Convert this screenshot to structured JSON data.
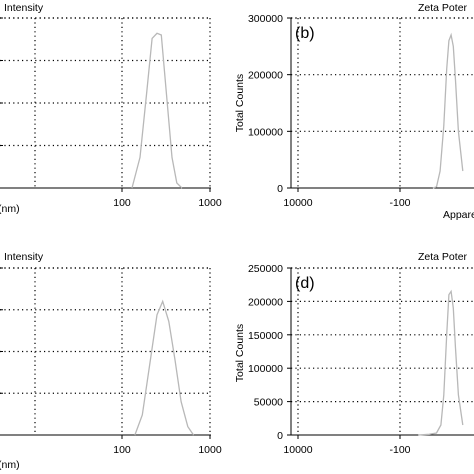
{
  "chart_data": [
    {
      "id": "a",
      "type": "line",
      "title": "Intensity",
      "panel_label": "",
      "xlabel": "(nm)",
      "ylabel": "",
      "x_scale": "log",
      "xlim": [
        10,
        10000
      ],
      "ylim": [
        0,
        100
      ],
      "x_tick_values": [
        100,
        1000,
        10000
      ],
      "x_tick_labels": [
        "100",
        "1000",
        "10000"
      ],
      "y_tick_values": [
        0,
        25,
        50,
        75,
        100
      ],
      "y_tick_labels": [
        "",
        "",
        "",
        "",
        ""
      ],
      "grid": true,
      "color": "#b8b8b8",
      "x": [
        130,
        160,
        190,
        220,
        250,
        280,
        320,
        370,
        420,
        480
      ],
      "y": [
        0,
        18,
        55,
        88,
        91,
        90,
        55,
        18,
        3,
        0
      ]
    },
    {
      "id": "b",
      "type": "line",
      "title": "Zeta Poter",
      "panel_label": "(b)",
      "xlabel": "Appare",
      "ylabel": "Total Counts",
      "x_scale": "linear",
      "xlim": [
        -200,
        50
      ],
      "ylim": [
        0,
        300000
      ],
      "x_tick_values": [
        -100
      ],
      "x_tick_labels": [
        "-100"
      ],
      "y_tick_values": [
        0,
        100000,
        200000,
        300000
      ],
      "y_tick_labels": [
        "0",
        "100000",
        "200000",
        "300000"
      ],
      "grid": true,
      "color": "#b8b8b8",
      "x": [
        -55,
        -50,
        -45,
        -40,
        -36,
        -33,
        -30,
        -27,
        -24,
        -20,
        -14
      ],
      "y": [
        0,
        2000,
        30000,
        110000,
        210000,
        260000,
        270000,
        250000,
        190000,
        100000,
        30000
      ]
    },
    {
      "id": "c",
      "type": "line",
      "title": "Intensity",
      "panel_label": "",
      "xlabel": "(nm)",
      "ylabel": "",
      "x_scale": "log",
      "xlim": [
        10,
        10000
      ],
      "ylim": [
        0,
        100
      ],
      "x_tick_values": [
        100,
        1000,
        10000
      ],
      "x_tick_labels": [
        "100",
        "1000",
        "10000"
      ],
      "y_tick_values": [
        0,
        25,
        50,
        75,
        100
      ],
      "y_tick_labels": [
        "",
        "",
        "",
        "",
        ""
      ],
      "grid": true,
      "color": "#b8b8b8",
      "x": [
        140,
        170,
        210,
        250,
        290,
        340,
        400,
        470,
        560,
        650
      ],
      "y": [
        0,
        12,
        45,
        72,
        80,
        68,
        45,
        20,
        5,
        0
      ]
    },
    {
      "id": "d",
      "type": "line",
      "title": "Zeta Poter",
      "panel_label": "(d)",
      "xlabel": "",
      "ylabel": "Total Counts",
      "x_scale": "linear",
      "xlim": [
        -200,
        50
      ],
      "ylim": [
        0,
        250000
      ],
      "x_tick_values": [
        -100
      ],
      "x_tick_labels": [
        "-100"
      ],
      "y_tick_values": [
        0,
        50000,
        100000,
        150000,
        200000,
        250000
      ],
      "y_tick_labels": [
        "0",
        "50000",
        "100000",
        "150000",
        "200000",
        "250000"
      ],
      "grid": true,
      "color": "#b8b8b8",
      "x": [
        -75,
        -60,
        -50,
        -44,
        -40,
        -36,
        -33,
        -30,
        -27,
        -24,
        -20,
        -14
      ],
      "y": [
        0,
        1000,
        3000,
        15000,
        60000,
        150000,
        210000,
        215000,
        190000,
        130000,
        60000,
        15000
      ]
    }
  ]
}
